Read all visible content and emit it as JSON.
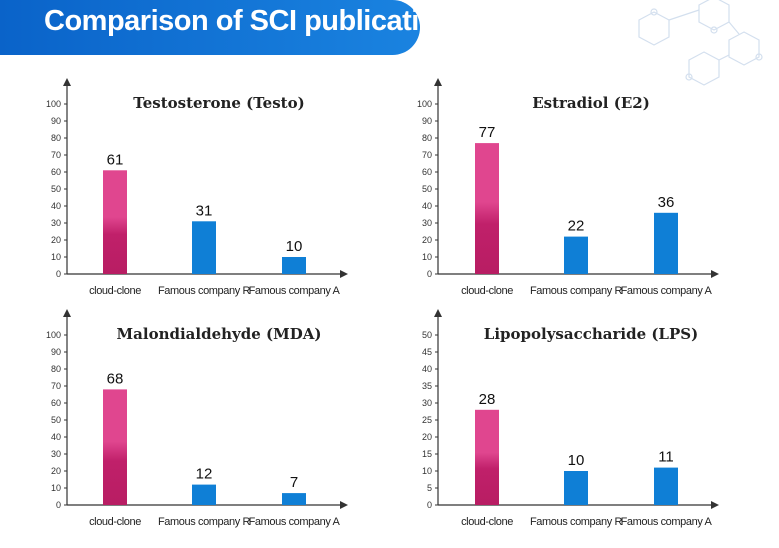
{
  "header": {
    "title": "Comparison of SCI publications"
  },
  "colors": {
    "banner": "#0a63c9",
    "highlight_top": "#e0468f",
    "highlight_bottom": "#c0206a",
    "bar": "#0f7fd6",
    "axis": "#333333"
  },
  "chart_data": [
    {
      "type": "bar",
      "title": "Testosterone (Testo)",
      "categories": [
        "cloud-clone",
        "Famous company  R",
        "Famous company A"
      ],
      "values": [
        61,
        31,
        10
      ],
      "labels": [
        "61",
        "31",
        "10"
      ],
      "ylim": [
        0,
        100
      ],
      "yticks": [
        "0",
        "10",
        "20",
        "30",
        "40",
        "50",
        "60",
        "70",
        "80",
        "90",
        "100"
      ],
      "grid": false
    },
    {
      "type": "bar",
      "title": "Estradiol (E2)",
      "categories": [
        "cloud-clone",
        "Famous company  R",
        "Famous company A"
      ],
      "values": [
        77,
        22,
        36
      ],
      "labels": [
        "77",
        "22",
        "36"
      ],
      "ylim": [
        0,
        100
      ],
      "yticks": [
        "0",
        "10",
        "20",
        "30",
        "40",
        "50",
        "60",
        "70",
        "80",
        "90",
        "100"
      ],
      "grid": false
    },
    {
      "type": "bar",
      "title": "Malondialdehyde (MDA)",
      "categories": [
        "cloud-clone",
        "Famous company  R",
        "Famous company A"
      ],
      "values": [
        68,
        12,
        7
      ],
      "labels": [
        "68",
        "12",
        "7"
      ],
      "ylim": [
        0,
        100
      ],
      "yticks": [
        "0",
        "10",
        "20",
        "30",
        "40",
        "50",
        "60",
        "70",
        "80",
        "90",
        "100"
      ],
      "grid": false
    },
    {
      "type": "bar",
      "title": "Lipopolysaccharide (LPS)",
      "categories": [
        "cloud-clone",
        "Famous company  R",
        "Famous company A"
      ],
      "values": [
        28,
        10,
        11
      ],
      "labels": [
        "28",
        "10",
        "11"
      ],
      "ylim": [
        0,
        50
      ],
      "yticks": [
        "0",
        "5",
        "10",
        "15",
        "20",
        "25",
        "30",
        "35",
        "40",
        "45",
        "50"
      ],
      "grid": false
    }
  ]
}
